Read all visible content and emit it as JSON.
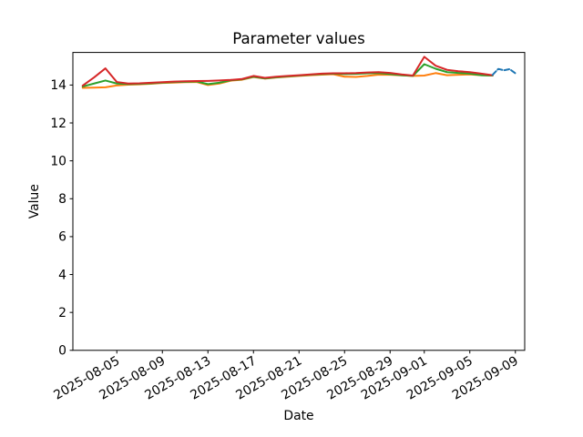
{
  "chart_data": {
    "type": "line",
    "title": "Parameter values",
    "xlabel": "Date",
    "ylabel": "Value",
    "grid": false,
    "legend": "none",
    "x_unit": "days since 2025-08-02",
    "x_start_date": "2025-08-02",
    "xlim": [
      -0.86,
      38.82
    ],
    "ylim": [
      0,
      15.72
    ],
    "yticks": [
      0,
      2,
      4,
      6,
      8,
      10,
      12,
      14
    ],
    "xticks": [
      {
        "day": 3,
        "label": "2025-08-05"
      },
      {
        "day": 7,
        "label": "2025-08-09"
      },
      {
        "day": 11,
        "label": "2025-08-13"
      },
      {
        "day": 15,
        "label": "2025-08-17"
      },
      {
        "day": 19,
        "label": "2025-08-21"
      },
      {
        "day": 23,
        "label": "2025-08-25"
      },
      {
        "day": 27,
        "label": "2025-08-29"
      },
      {
        "day": 30,
        "label": "2025-09-01"
      },
      {
        "day": 34,
        "label": "2025-09-05"
      },
      {
        "day": 38,
        "label": "2025-09-09"
      }
    ],
    "series": [
      {
        "name": "orange",
        "color": "#ff7f0e",
        "style": "solid",
        "x_days": [
          0,
          1,
          2,
          3,
          4,
          5,
          6,
          7,
          8,
          9,
          10,
          11,
          12,
          13,
          14,
          15,
          16,
          17,
          18,
          19,
          20,
          21,
          22,
          23,
          24,
          25,
          26,
          27,
          28,
          29,
          30,
          31,
          32,
          33,
          34,
          35,
          36
        ],
        "values": [
          13.85,
          13.86,
          13.88,
          13.98,
          14.02,
          14.04,
          14.07,
          14.11,
          14.13,
          14.15,
          14.16,
          14.0,
          14.08,
          14.23,
          14.28,
          14.42,
          14.34,
          14.4,
          14.44,
          14.48,
          14.52,
          14.55,
          14.57,
          14.44,
          14.43,
          14.48,
          14.55,
          14.54,
          14.51,
          14.48,
          14.5,
          14.63,
          14.52,
          14.54,
          14.56,
          14.52,
          14.5
        ]
      },
      {
        "name": "green",
        "color": "#2ca02c",
        "style": "solid",
        "x_days": [
          0,
          1,
          2,
          3,
          4,
          5,
          6,
          7,
          8,
          9,
          10,
          11,
          12,
          13,
          14,
          15,
          16,
          17,
          18,
          19,
          20,
          21,
          22,
          23,
          24,
          25,
          26,
          27,
          28,
          29,
          30,
          31,
          32,
          33,
          34,
          35,
          36
        ],
        "values": [
          13.92,
          14.08,
          14.24,
          14.08,
          14.05,
          14.06,
          14.09,
          14.13,
          14.16,
          14.17,
          14.19,
          14.05,
          14.12,
          14.25,
          14.3,
          14.44,
          14.35,
          14.41,
          14.46,
          14.5,
          14.54,
          14.58,
          14.6,
          14.58,
          14.59,
          14.62,
          14.63,
          14.58,
          14.52,
          14.48,
          15.1,
          14.86,
          14.68,
          14.64,
          14.6,
          14.52,
          14.5
        ]
      },
      {
        "name": "red",
        "color": "#d62728",
        "style": "solid",
        "x_days": [
          0,
          1,
          2,
          3,
          4,
          5,
          6,
          7,
          8,
          9,
          10,
          11,
          12,
          13,
          14,
          15,
          16,
          17,
          18,
          19,
          20,
          21,
          22,
          23,
          24,
          25,
          26,
          27,
          28,
          29,
          30,
          31,
          32,
          33,
          34,
          35,
          36
        ],
        "values": [
          13.97,
          14.4,
          14.88,
          14.16,
          14.08,
          14.09,
          14.12,
          14.15,
          14.18,
          14.2,
          14.21,
          14.22,
          14.24,
          14.27,
          14.32,
          14.48,
          14.38,
          14.44,
          14.48,
          14.52,
          14.56,
          14.6,
          14.62,
          14.62,
          14.63,
          14.66,
          14.68,
          14.64,
          14.56,
          14.5,
          15.49,
          15.02,
          14.8,
          14.73,
          14.68,
          14.6,
          14.52
        ]
      },
      {
        "name": "blue",
        "color": "#1f77b4",
        "style": "dashed",
        "x_days": [
          36,
          36.5,
          37,
          37.5,
          38
        ],
        "values": [
          14.54,
          14.85,
          14.78,
          14.84,
          14.62
        ]
      }
    ]
  }
}
